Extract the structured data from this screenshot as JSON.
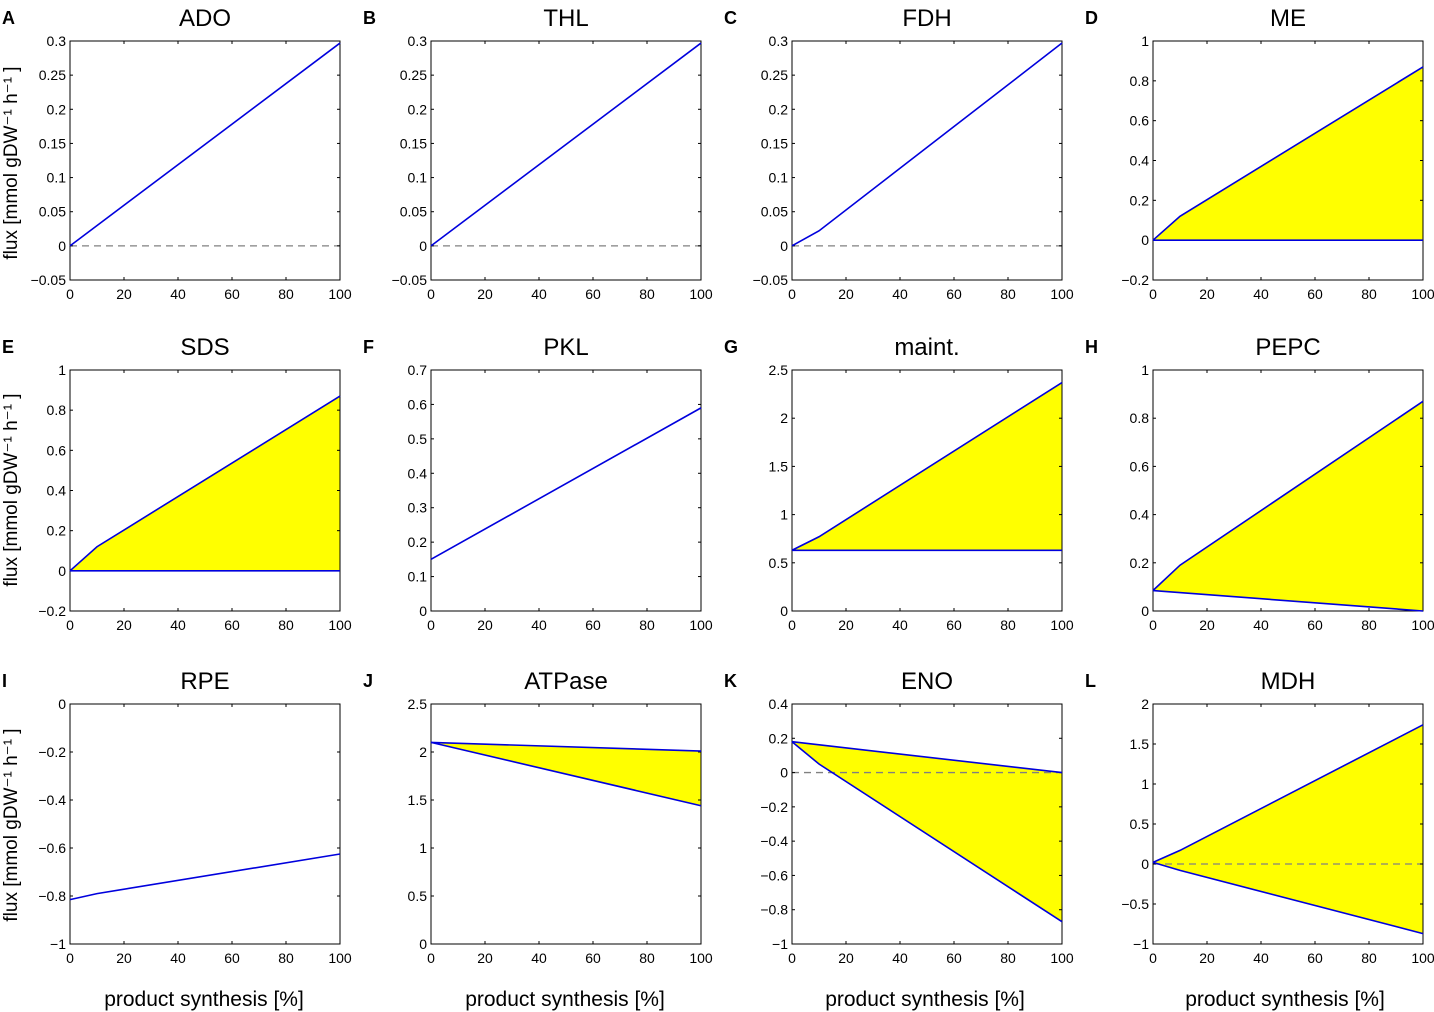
{
  "figure": {
    "shared_ylabel": "flux [mmol gDW⁻¹ h⁻¹ ]",
    "shared_xlabel": "product synthesis [%]"
  },
  "chart_data": [
    {
      "letter": "A",
      "title": "ADO",
      "type": "area",
      "xlim": [
        0,
        100
      ],
      "ylim": [
        -0.05,
        0.3
      ],
      "xticks": [
        0,
        20,
        40,
        60,
        80,
        100
      ],
      "yticks": [
        -0.05,
        0,
        0.05,
        0.1,
        0.15,
        0.2,
        0.25,
        0.3
      ],
      "ytick_labels": [
        "−0.05",
        "0",
        "0.05",
        "0.1",
        "0.15",
        "0.2",
        "0.25",
        "0.3"
      ],
      "zero_line": true,
      "series": [
        {
          "name": "flux",
          "x": [
            0,
            100
          ],
          "values": [
            0,
            0.297
          ]
        }
      ]
    },
    {
      "letter": "B",
      "title": "THL",
      "type": "area",
      "xlim": [
        0,
        100
      ],
      "ylim": [
        -0.05,
        0.3
      ],
      "xticks": [
        0,
        20,
        40,
        60,
        80,
        100
      ],
      "yticks": [
        -0.05,
        0,
        0.05,
        0.1,
        0.15,
        0.2,
        0.25,
        0.3
      ],
      "ytick_labels": [
        "−0.05",
        "0",
        "0.05",
        "0.1",
        "0.15",
        "0.2",
        "0.25",
        "0.3"
      ],
      "zero_line": true,
      "series": [
        {
          "name": "flux",
          "x": [
            0,
            100
          ],
          "values": [
            0,
            0.297
          ]
        }
      ]
    },
    {
      "letter": "C",
      "title": "FDH",
      "type": "area",
      "xlim": [
        0,
        100
      ],
      "ylim": [
        -0.05,
        0.3
      ],
      "xticks": [
        0,
        20,
        40,
        60,
        80,
        100
      ],
      "yticks": [
        -0.05,
        0,
        0.05,
        0.1,
        0.15,
        0.2,
        0.25,
        0.3
      ],
      "ytick_labels": [
        "−0.05",
        "0",
        "0.05",
        "0.1",
        "0.15",
        "0.2",
        "0.25",
        "0.3"
      ],
      "zero_line": true,
      "series": [
        {
          "name": "flux",
          "x": [
            0,
            10,
            100
          ],
          "values": [
            0,
            0.022,
            0.297
          ]
        }
      ]
    },
    {
      "letter": "D",
      "title": "ME",
      "type": "area",
      "xlim": [
        0,
        100
      ],
      "ylim": [
        -0.2,
        1
      ],
      "xticks": [
        0,
        20,
        40,
        60,
        80,
        100
      ],
      "yticks": [
        -0.2,
        0,
        0.2,
        0.4,
        0.6,
        0.8,
        1
      ],
      "ytick_labels": [
        "−0.2",
        "0",
        "0.2",
        "0.4",
        "0.6",
        "0.8",
        "1"
      ],
      "zero_line": false,
      "series": [
        {
          "name": "max",
          "x": [
            0,
            10,
            100
          ],
          "values": [
            0,
            0.12,
            0.87
          ]
        },
        {
          "name": "min",
          "x": [
            0,
            100
          ],
          "values": [
            0,
            0
          ]
        }
      ]
    },
    {
      "letter": "E",
      "title": "SDS",
      "type": "area",
      "xlim": [
        0,
        100
      ],
      "ylim": [
        -0.2,
        1
      ],
      "xticks": [
        0,
        20,
        40,
        60,
        80,
        100
      ],
      "yticks": [
        -0.2,
        0,
        0.2,
        0.4,
        0.6,
        0.8,
        1
      ],
      "ytick_labels": [
        "−0.2",
        "0",
        "0.2",
        "0.4",
        "0.6",
        "0.8",
        "1"
      ],
      "zero_line": false,
      "series": [
        {
          "name": "max",
          "x": [
            0,
            10,
            100
          ],
          "values": [
            0,
            0.12,
            0.87
          ]
        },
        {
          "name": "min",
          "x": [
            0,
            100
          ],
          "values": [
            0,
            0
          ]
        }
      ]
    },
    {
      "letter": "F",
      "title": "PKL",
      "type": "area",
      "xlim": [
        0,
        100
      ],
      "ylim": [
        0,
        0.7
      ],
      "xticks": [
        0,
        20,
        40,
        60,
        80,
        100
      ],
      "yticks": [
        0,
        0.1,
        0.2,
        0.3,
        0.4,
        0.5,
        0.6,
        0.7
      ],
      "ytick_labels": [
        "0",
        "0.1",
        "0.2",
        "0.3",
        "0.4",
        "0.5",
        "0.6",
        "0.7"
      ],
      "zero_line": false,
      "series": [
        {
          "name": "flux",
          "x": [
            0,
            100
          ],
          "values": [
            0.15,
            0.59
          ]
        }
      ]
    },
    {
      "letter": "G",
      "title": "maint.",
      "type": "area",
      "xlim": [
        0,
        100
      ],
      "ylim": [
        0,
        2.5
      ],
      "xticks": [
        0,
        20,
        40,
        60,
        80,
        100
      ],
      "yticks": [
        0,
        0.5,
        1,
        1.5,
        2,
        2.5
      ],
      "ytick_labels": [
        "0",
        "0.5",
        "1",
        "1.5",
        "2",
        "2.5"
      ],
      "zero_line": false,
      "series": [
        {
          "name": "max",
          "x": [
            0,
            10,
            100
          ],
          "values": [
            0.63,
            0.77,
            2.37
          ]
        },
        {
          "name": "min",
          "x": [
            0,
            100
          ],
          "values": [
            0.63,
            0.63
          ]
        }
      ]
    },
    {
      "letter": "H",
      "title": "PEPC",
      "type": "area",
      "xlim": [
        0,
        100
      ],
      "ylim": [
        0,
        1
      ],
      "xticks": [
        0,
        20,
        40,
        60,
        80,
        100
      ],
      "yticks": [
        0,
        0.2,
        0.4,
        0.6,
        0.8,
        1
      ],
      "ytick_labels": [
        "0",
        "0.2",
        "0.4",
        "0.6",
        "0.8",
        "1"
      ],
      "zero_line": false,
      "series": [
        {
          "name": "max",
          "x": [
            0,
            10,
            100
          ],
          "values": [
            0.085,
            0.19,
            0.87
          ]
        },
        {
          "name": "min",
          "x": [
            0,
            100
          ],
          "values": [
            0.085,
            0
          ]
        }
      ]
    },
    {
      "letter": "I",
      "title": "RPE",
      "type": "area",
      "xlim": [
        0,
        100
      ],
      "ylim": [
        -1,
        0
      ],
      "xticks": [
        0,
        20,
        40,
        60,
        80,
        100
      ],
      "yticks": [
        -1,
        -0.8,
        -0.6,
        -0.4,
        -0.2,
        0
      ],
      "ytick_labels": [
        "−1",
        "−0.8",
        "−0.6",
        "−0.4",
        "−0.2",
        "0"
      ],
      "zero_line": false,
      "series": [
        {
          "name": "flux",
          "x": [
            0,
            10,
            100
          ],
          "values": [
            -0.815,
            -0.79,
            -0.625
          ]
        }
      ]
    },
    {
      "letter": "J",
      "title": "ATPase",
      "type": "area",
      "xlim": [
        0,
        100
      ],
      "ylim": [
        0,
        2.5
      ],
      "xticks": [
        0,
        20,
        40,
        60,
        80,
        100
      ],
      "yticks": [
        0,
        0.5,
        1,
        1.5,
        2,
        2.5
      ],
      "ytick_labels": [
        "0",
        "0.5",
        "1",
        "1.5",
        "2",
        "2.5"
      ],
      "zero_line": false,
      "series": [
        {
          "name": "max",
          "x": [
            0,
            100
          ],
          "values": [
            2.1,
            2.01
          ]
        },
        {
          "name": "min",
          "x": [
            0,
            100
          ],
          "values": [
            2.1,
            1.44
          ]
        }
      ]
    },
    {
      "letter": "K",
      "title": "ENO",
      "type": "area",
      "xlim": [
        0,
        100
      ],
      "ylim": [
        -1,
        0.4
      ],
      "xticks": [
        0,
        20,
        40,
        60,
        80,
        100
      ],
      "yticks": [
        -1,
        -0.8,
        -0.6,
        -0.4,
        -0.2,
        0,
        0.2,
        0.4
      ],
      "ytick_labels": [
        "−1",
        "−0.8",
        "−0.6",
        "−0.4",
        "−0.2",
        "0",
        "0.2",
        "0.4"
      ],
      "zero_line": true,
      "series": [
        {
          "name": "max",
          "x": [
            0,
            100
          ],
          "values": [
            0.18,
            0
          ]
        },
        {
          "name": "min",
          "x": [
            0,
            10,
            100
          ],
          "values": [
            0.18,
            0.05,
            -0.87
          ]
        }
      ]
    },
    {
      "letter": "L",
      "title": "MDH",
      "type": "area",
      "xlim": [
        0,
        100
      ],
      "ylim": [
        -1,
        2
      ],
      "xticks": [
        0,
        20,
        40,
        60,
        80,
        100
      ],
      "yticks": [
        -1,
        -0.5,
        0,
        0.5,
        1,
        1.5,
        2
      ],
      "ytick_labels": [
        "−1",
        "−0.5",
        "0",
        "0.5",
        "1",
        "1.5",
        "2"
      ],
      "zero_line": true,
      "series": [
        {
          "name": "max",
          "x": [
            0,
            10,
            100
          ],
          "values": [
            0.02,
            0.17,
            1.74
          ]
        },
        {
          "name": "min",
          "x": [
            0,
            10,
            100
          ],
          "values": [
            0.02,
            -0.08,
            -0.87
          ]
        }
      ]
    }
  ],
  "colors": {
    "line": "#0000dd",
    "fill": "#ffff00",
    "zero_line": "#808080"
  }
}
